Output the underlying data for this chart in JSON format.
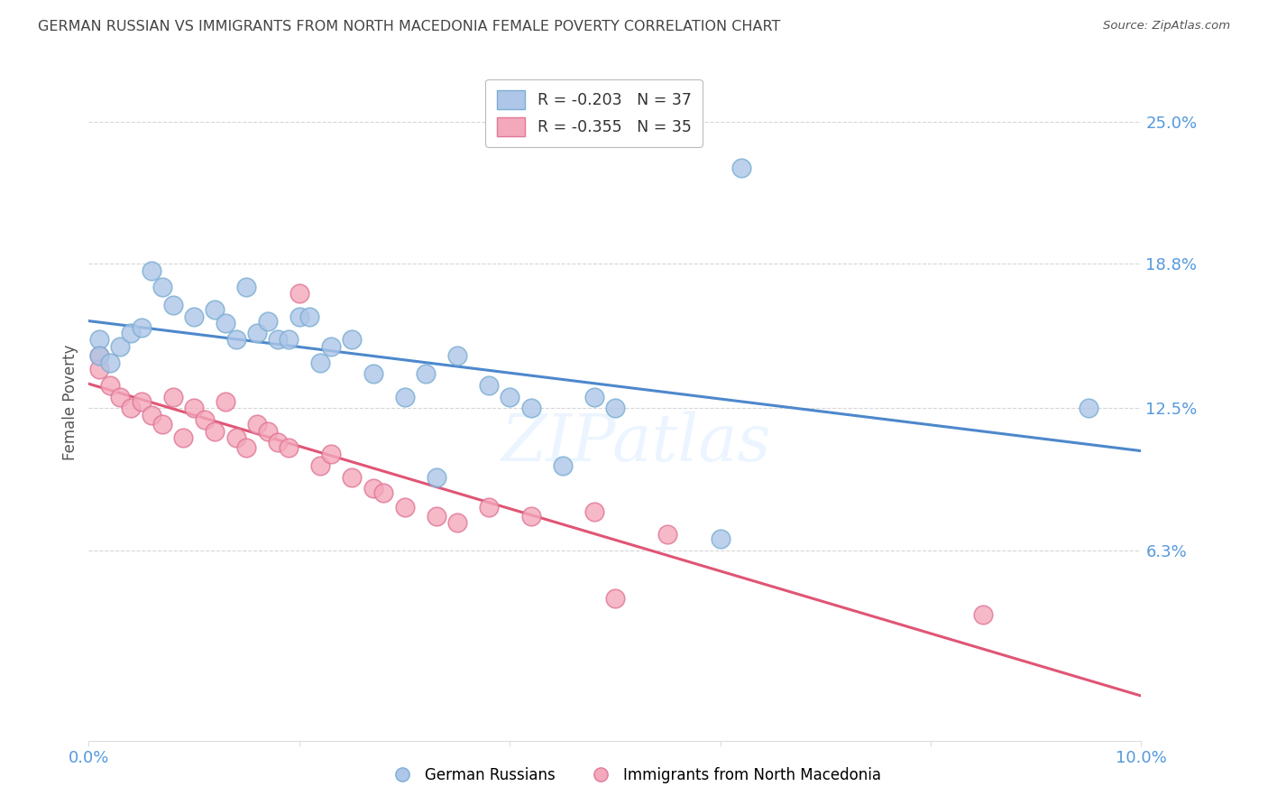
{
  "title": "GERMAN RUSSIAN VS IMMIGRANTS FROM NORTH MACEDONIA FEMALE POVERTY CORRELATION CHART",
  "source": "Source: ZipAtlas.com",
  "ylabel": "Female Poverty",
  "ytick_labels": [
    "25.0%",
    "18.8%",
    "12.5%",
    "6.3%"
  ],
  "ytick_values": [
    0.25,
    0.188,
    0.125,
    0.063
  ],
  "xmin": 0.0,
  "xmax": 0.1,
  "ymin": -0.02,
  "ymax": 0.275,
  "watermark": "ZIPatlas",
  "legend_label1": "R = -0.203   N = 37",
  "legend_label2": "R = -0.355   N = 35",
  "series1_color": "#aec6e8",
  "series1_edge": "#7bafd4",
  "series2_color": "#f4a8bb",
  "series2_edge": "#e07898",
  "line1_color": "#4d88cc",
  "line2_color": "#e05575",
  "grid_color": "#cccccc",
  "axis_label_color": "#5599dd",
  "title_color": "#444444",
  "background_color": "#ffffff",
  "german_russian_x": [
    0.001,
    0.001,
    0.002,
    0.003,
    0.004,
    0.005,
    0.006,
    0.007,
    0.008,
    0.01,
    0.012,
    0.013,
    0.014,
    0.015,
    0.016,
    0.017,
    0.018,
    0.019,
    0.02,
    0.021,
    0.022,
    0.023,
    0.025,
    0.027,
    0.03,
    0.032,
    0.033,
    0.035,
    0.038,
    0.04,
    0.042,
    0.045,
    0.048,
    0.05,
    0.06,
    0.062,
    0.095
  ],
  "german_russian_y": [
    0.155,
    0.148,
    0.145,
    0.152,
    0.158,
    0.16,
    0.185,
    0.178,
    0.17,
    0.165,
    0.168,
    0.162,
    0.155,
    0.178,
    0.158,
    0.163,
    0.155,
    0.155,
    0.165,
    0.165,
    0.145,
    0.152,
    0.155,
    0.14,
    0.13,
    0.14,
    0.095,
    0.148,
    0.135,
    0.13,
    0.125,
    0.1,
    0.13,
    0.125,
    0.068,
    0.23,
    0.125
  ],
  "north_macedonia_x": [
    0.001,
    0.001,
    0.002,
    0.003,
    0.004,
    0.005,
    0.006,
    0.007,
    0.008,
    0.009,
    0.01,
    0.011,
    0.012,
    0.013,
    0.014,
    0.015,
    0.016,
    0.017,
    0.018,
    0.019,
    0.02,
    0.022,
    0.023,
    0.025,
    0.027,
    0.028,
    0.03,
    0.033,
    0.035,
    0.038,
    0.042,
    0.048,
    0.05,
    0.055,
    0.085
  ],
  "north_macedonia_y": [
    0.148,
    0.142,
    0.135,
    0.13,
    0.125,
    0.128,
    0.122,
    0.118,
    0.13,
    0.112,
    0.125,
    0.12,
    0.115,
    0.128,
    0.112,
    0.108,
    0.118,
    0.115,
    0.11,
    0.108,
    0.175,
    0.1,
    0.105,
    0.095,
    0.09,
    0.088,
    0.082,
    0.078,
    0.075,
    0.082,
    0.078,
    0.08,
    0.042,
    0.07,
    0.035
  ]
}
